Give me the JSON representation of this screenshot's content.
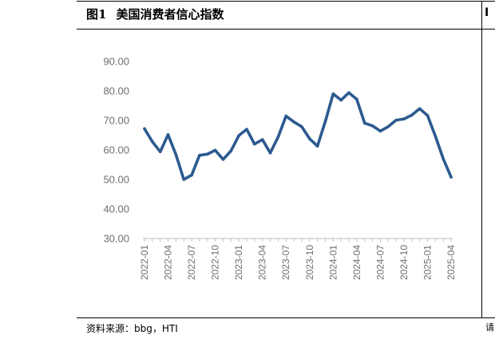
{
  "header": {
    "figure_label": "图1",
    "title": "美国消费者信心指数",
    "right_edge_glyph": "I"
  },
  "footer": {
    "source": "资料来源：bbg，HTI",
    "right_edge_glyph": "请"
  },
  "colors": {
    "line": "#2c5a8f",
    "axis": "#bfbfbf",
    "tick_text": "#6e6e6e"
  },
  "chart_data": {
    "type": "line",
    "title": "美国消费者信心指数",
    "xlabel": "",
    "ylabel": "",
    "ylim": [
      30,
      90
    ],
    "yticks": [
      "30.00",
      "40.00",
      "50.00",
      "60.00",
      "70.00",
      "80.00",
      "90.00"
    ],
    "x_tick_labels": [
      "2022-01",
      "2022-04",
      "2022-07",
      "2022-10",
      "2023-01",
      "2023-04",
      "2023-07",
      "2023-10",
      "2024-01",
      "2024-04",
      "2024-07",
      "2024-10",
      "2025-01",
      "2025-04"
    ],
    "grid": false,
    "legend": "none",
    "x": [
      "2022-01",
      "2022-02",
      "2022-03",
      "2022-04",
      "2022-05",
      "2022-06",
      "2022-07",
      "2022-08",
      "2022-09",
      "2022-10",
      "2022-11",
      "2022-12",
      "2023-01",
      "2023-02",
      "2023-03",
      "2023-04",
      "2023-05",
      "2023-06",
      "2023-07",
      "2023-08",
      "2023-09",
      "2023-10",
      "2023-11",
      "2023-12",
      "2024-01",
      "2024-02",
      "2024-03",
      "2024-04",
      "2024-05",
      "2024-06",
      "2024-07",
      "2024-08",
      "2024-09",
      "2024-10",
      "2024-11",
      "2024-12",
      "2025-01",
      "2025-02",
      "2025-03",
      "2025-04"
    ],
    "series": [
      {
        "values": [
          67.2,
          62.8,
          59.4,
          65.2,
          58.4,
          50.0,
          51.5,
          58.2,
          58.6,
          59.9,
          56.8,
          59.7,
          64.9,
          67.0,
          62.0,
          63.5,
          59.0,
          64.4,
          71.5,
          69.5,
          67.9,
          63.8,
          61.3,
          69.7,
          79.0,
          76.9,
          79.4,
          77.2,
          69.1,
          68.2,
          66.4,
          67.9,
          70.1,
          70.5,
          71.8,
          74.0,
          71.7,
          64.7,
          57.0,
          50.8
        ]
      }
    ]
  }
}
